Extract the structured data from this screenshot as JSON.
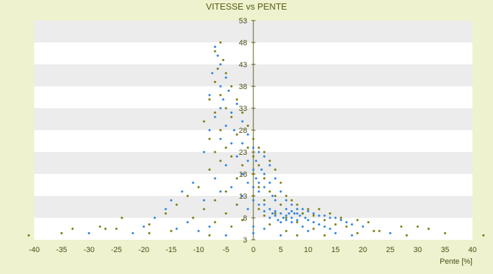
{
  "chart_data": {
    "type": "scatter",
    "title": "VITESSE vs PENTE",
    "xlabel": "Pente [%]",
    "ylabel": "",
    "xlim": [
      -40,
      40
    ],
    "ylim": [
      3,
      53
    ],
    "x_ticks": [
      -40,
      -35,
      -30,
      -25,
      -20,
      -15,
      -10,
      -5,
      0,
      5,
      10,
      15,
      20,
      25,
      30,
      35,
      40
    ],
    "y_ticks": [
      3,
      8,
      13,
      18,
      23,
      28,
      33,
      38,
      43,
      48,
      53
    ],
    "grid": true,
    "legend": "none",
    "colors": {
      "background": "#eef2cf",
      "band_light": "#ffffff",
      "band_dark": "#ececec",
      "axis": "#5a5a12",
      "series_1": "#2e86de",
      "series_2": "#7c7c10"
    },
    "series": [
      {
        "color": "#2e86de",
        "points": [
          [
            -7,
            47
          ],
          [
            -6.5,
            45
          ],
          [
            -6,
            43
          ],
          [
            -7.5,
            41
          ],
          [
            -5,
            40
          ],
          [
            -6,
            38
          ],
          [
            -4.5,
            37
          ],
          [
            -8,
            36
          ],
          [
            -5.5,
            35
          ],
          [
            -3,
            34
          ],
          [
            -6,
            33
          ],
          [
            -4,
            32
          ],
          [
            -7,
            31
          ],
          [
            -2,
            30
          ],
          [
            -5,
            29
          ],
          [
            -8,
            28
          ],
          [
            -3.5,
            28
          ],
          [
            -1,
            27
          ],
          [
            -6,
            26
          ],
          [
            -4,
            25
          ],
          [
            -2,
            25
          ],
          [
            0,
            24
          ],
          [
            1,
            23
          ],
          [
            -9,
            23
          ],
          [
            -3,
            22
          ],
          [
            2,
            22
          ],
          [
            -1,
            21
          ],
          [
            0.5,
            21
          ],
          [
            3,
            20
          ],
          [
            -5,
            20
          ],
          [
            1.5,
            19
          ],
          [
            0,
            19
          ],
          [
            -2,
            18
          ],
          [
            2,
            18
          ],
          [
            4,
            17
          ],
          [
            -7,
            17
          ],
          [
            0.5,
            17
          ],
          [
            -1,
            16
          ],
          [
            1,
            16
          ],
          [
            3,
            16
          ],
          [
            -11,
            16
          ],
          [
            -4,
            15
          ],
          [
            0,
            15
          ],
          [
            2,
            15
          ],
          [
            5,
            14
          ],
          [
            -13,
            14
          ],
          [
            -6,
            14
          ],
          [
            1,
            14
          ],
          [
            3.5,
            13
          ],
          [
            -2,
            13
          ],
          [
            6,
            12
          ],
          [
            -15,
            12
          ],
          [
            0,
            12
          ],
          [
            4,
            12
          ],
          [
            -9,
            12
          ],
          [
            2,
            11
          ],
          [
            7,
            11
          ],
          [
            -3,
            11
          ],
          [
            1,
            11
          ],
          [
            5,
            11
          ],
          [
            8,
            10
          ],
          [
            -16,
            10
          ],
          [
            3,
            10
          ],
          [
            6,
            10
          ],
          [
            -1,
            10
          ],
          [
            9,
            10
          ],
          [
            4,
            9.5
          ],
          [
            7,
            9.5
          ],
          [
            2,
            9.5
          ],
          [
            10,
            9.5
          ],
          [
            5,
            9
          ],
          [
            6.5,
            9
          ],
          [
            8,
            9
          ],
          [
            3.5,
            9
          ],
          [
            7.5,
            9
          ],
          [
            9,
            9
          ],
          [
            11,
            9
          ],
          [
            12,
            8.5
          ],
          [
            6,
            8.5
          ],
          [
            8.5,
            8.5
          ],
          [
            4,
            8.5
          ],
          [
            13,
            8.5
          ],
          [
            5.5,
            8
          ],
          [
            7,
            8
          ],
          [
            9.5,
            8
          ],
          [
            14,
            8
          ],
          [
            3,
            8
          ],
          [
            15,
            8
          ],
          [
            -18,
            8
          ],
          [
            6,
            7.5
          ],
          [
            8,
            7.5
          ],
          [
            10,
            7.5
          ],
          [
            16,
            7.5
          ],
          [
            4.5,
            7.5
          ],
          [
            11,
            7
          ],
          [
            7,
            7
          ],
          [
            17,
            7
          ],
          [
            -12,
            7
          ],
          [
            5,
            7
          ],
          [
            12,
            6.5
          ],
          [
            18,
            6.5
          ],
          [
            -20,
            6
          ],
          [
            9,
            6
          ],
          [
            13,
            6
          ],
          [
            -8,
            6
          ],
          [
            20,
            6
          ],
          [
            0,
            6
          ],
          [
            -14,
            5.5
          ],
          [
            14,
            5.5
          ],
          [
            2,
            5.5
          ],
          [
            -10,
            5
          ],
          [
            10,
            5
          ],
          [
            -22,
            4.5
          ],
          [
            15,
            4.5
          ],
          [
            0,
            4.5
          ],
          [
            -30,
            4.5
          ],
          [
            25,
            4.5
          ],
          [
            -5,
            4
          ],
          [
            5,
            4
          ],
          [
            18,
            4
          ]
        ]
      },
      {
        "color": "#7c7c10",
        "points": [
          [
            -6,
            48
          ],
          [
            -7,
            46
          ],
          [
            -5.5,
            44
          ],
          [
            -6.5,
            42
          ],
          [
            -5,
            41
          ],
          [
            -7,
            39
          ],
          [
            -4,
            38
          ],
          [
            -6,
            36
          ],
          [
            -8,
            35
          ],
          [
            -3,
            35
          ],
          [
            -5,
            33
          ],
          [
            -7,
            32
          ],
          [
            -2,
            32
          ],
          [
            -4,
            31
          ],
          [
            -9,
            30
          ],
          [
            -1,
            29
          ],
          [
            -6,
            28
          ],
          [
            -3,
            27
          ],
          [
            -8,
            26
          ],
          [
            0,
            26
          ],
          [
            -5,
            24
          ],
          [
            -1,
            24
          ],
          [
            1,
            24
          ],
          [
            -7,
            23
          ],
          [
            2,
            23
          ],
          [
            -4,
            22
          ],
          [
            0,
            22
          ],
          [
            3,
            21
          ],
          [
            -6,
            21
          ],
          [
            1,
            20
          ],
          [
            -2,
            20
          ],
          [
            4,
            19
          ],
          [
            -8,
            19
          ],
          [
            0,
            18
          ],
          [
            2,
            17
          ],
          [
            -3,
            17
          ],
          [
            5,
            16
          ],
          [
            -10,
            15
          ],
          [
            1,
            15
          ],
          [
            3,
            14
          ],
          [
            -5,
            14
          ],
          [
            6,
            13
          ],
          [
            -12,
            13
          ],
          [
            0,
            13
          ],
          [
            4,
            13
          ],
          [
            -7,
            12
          ],
          [
            7,
            12
          ],
          [
            2,
            12
          ],
          [
            -3,
            11
          ],
          [
            8,
            11
          ],
          [
            -14,
            11
          ],
          [
            5,
            11
          ],
          [
            10,
            10
          ],
          [
            -9,
            10
          ],
          [
            1,
            10
          ],
          [
            12,
            10
          ],
          [
            -5,
            9
          ],
          [
            4,
            9
          ],
          [
            14,
            9
          ],
          [
            -16,
            9
          ],
          [
            9,
            9
          ],
          [
            2,
            8.5
          ],
          [
            11,
            8.5
          ],
          [
            -11,
            8
          ],
          [
            6,
            8
          ],
          [
            16,
            8
          ],
          [
            -24,
            8
          ],
          [
            -2,
            7.5
          ],
          [
            13,
            7.5
          ],
          [
            19,
            7.5
          ],
          [
            -7,
            7
          ],
          [
            8,
            7
          ],
          [
            21,
            7
          ],
          [
            -19,
            6.5
          ],
          [
            3,
            6.5
          ],
          [
            15,
            6.5
          ],
          [
            -28,
            6
          ],
          [
            -4,
            6
          ],
          [
            17,
            6
          ],
          [
            27,
            6
          ],
          [
            -25,
            5.5
          ],
          [
            11,
            5.5
          ],
          [
            32,
            5.5
          ],
          [
            -15,
            5
          ],
          [
            6,
            5
          ],
          [
            23,
            5
          ],
          [
            -35,
            4.5
          ],
          [
            19,
            4.5
          ],
          [
            35,
            4.5
          ],
          [
            -41,
            4
          ],
          [
            -8,
            4
          ],
          [
            8,
            4
          ],
          [
            13,
            4
          ],
          [
            28,
            4
          ],
          [
            42,
            4
          ],
          [
            -19,
            4.5
          ],
          [
            22,
            5
          ],
          [
            -27,
            5.5
          ],
          [
            30,
            6
          ],
          [
            -33,
            5.5
          ]
        ]
      }
    ]
  }
}
